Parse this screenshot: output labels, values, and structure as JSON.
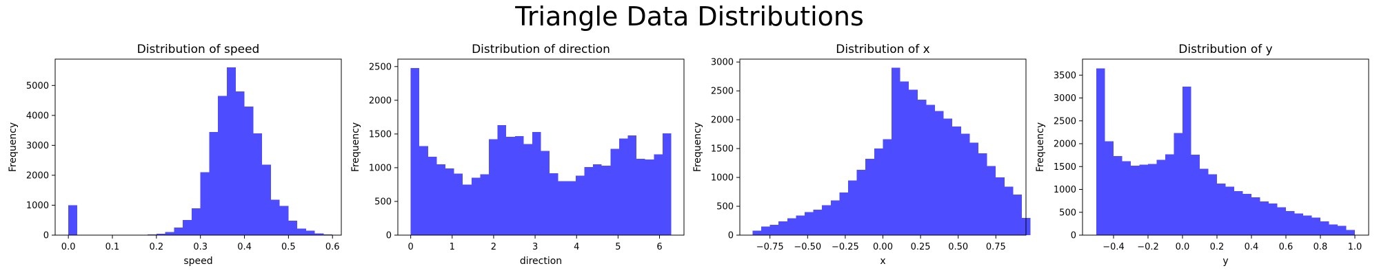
{
  "suptitle": "Triangle Data Distributions",
  "colors": {
    "bar": "#4d4dff",
    "axis": "#000000"
  },
  "chart_data": [
    {
      "type": "bar",
      "title": "Distribution of speed",
      "xlabel": "speed",
      "ylabel": "Frequency",
      "xlim": [
        -0.03,
        0.62
      ],
      "ylim": [
        0,
        5880
      ],
      "xticks": [
        0.0,
        0.1,
        0.2,
        0.3,
        0.4,
        0.5,
        0.6
      ],
      "xtick_labels": [
        "0.0",
        "0.1",
        "0.2",
        "0.3",
        "0.4",
        "0.5",
        "0.6"
      ],
      "yticks": [
        0,
        1000,
        2000,
        3000,
        4000,
        5000
      ],
      "ytick_labels": [
        "0",
        "1000",
        "2000",
        "3000",
        "4000",
        "5000"
      ],
      "bin_start": 0.0,
      "bin_width": 0.02,
      "values": [
        1000,
        0,
        0,
        0,
        0,
        0,
        0,
        0,
        10,
        20,
        50,
        100,
        250,
        500,
        900,
        2100,
        3450,
        4650,
        5600,
        4800,
        4300,
        3400,
        2350,
        1180,
        980,
        480,
        220,
        150,
        60,
        20
      ]
    },
    {
      "type": "bar",
      "title": "Distribution of direction",
      "xlabel": "direction",
      "ylabel": "Frequency",
      "xlim": [
        -0.31,
        6.59
      ],
      "ylim": [
        0,
        2610
      ],
      "xticks": [
        0,
        1,
        2,
        3,
        4,
        5,
        6
      ],
      "xtick_labels": [
        "0",
        "1",
        "2",
        "3",
        "4",
        "5",
        "6"
      ],
      "yticks": [
        0,
        500,
        1000,
        1500,
        2000,
        2500
      ],
      "ytick_labels": [
        "0",
        "500",
        "1000",
        "1500",
        "2000",
        "2500"
      ],
      "bin_start": 0.0,
      "bin_width": 0.2094,
      "values": [
        2480,
        1320,
        1160,
        1050,
        990,
        910,
        750,
        850,
        900,
        1420,
        1630,
        1460,
        1470,
        1350,
        1530,
        1250,
        920,
        800,
        800,
        880,
        1010,
        1050,
        1030,
        1280,
        1430,
        1480,
        1130,
        1120,
        1200,
        1510
      ]
    },
    {
      "type": "bar",
      "title": "Distribution of x",
      "xlabel": "x",
      "ylabel": "Frequency",
      "xlim": [
        -0.95,
        0.95
      ],
      "ylim": [
        0,
        3050
      ],
      "xticks": [
        -0.75,
        -0.5,
        -0.25,
        0.0,
        0.25,
        0.5,
        0.75
      ],
      "xtick_labels": [
        "−0.75",
        "−0.50",
        "−0.25",
        "0.00",
        "0.25",
        "0.50",
        "0.75"
      ],
      "yticks": [
        0,
        500,
        1000,
        1500,
        2000,
        2500,
        3000
      ],
      "ytick_labels": [
        "0",
        "500",
        "1000",
        "1500",
        "2000",
        "2500",
        "3000"
      ],
      "bin_start": -0.866,
      "bin_width": 0.0577,
      "values": [
        75,
        150,
        180,
        240,
        290,
        340,
        400,
        440,
        520,
        600,
        740,
        950,
        1130,
        1320,
        1500,
        1660,
        2900,
        2660,
        2520,
        2350,
        2260,
        2150,
        2020,
        1880,
        1760,
        1600,
        1420,
        1200,
        1000,
        840,
        700,
        300
      ]
    },
    {
      "type": "bar",
      "title": "Distribution of y",
      "xlabel": "y",
      "ylabel": "Frequency",
      "xlim": [
        -0.58,
        1.08
      ],
      "ylim": [
        0,
        3850
      ],
      "xticks": [
        -0.4,
        -0.2,
        0.0,
        0.2,
        0.4,
        0.6,
        0.8,
        1.0
      ],
      "xtick_labels": [
        "−0.4",
        "−0.2",
        "0.0",
        "0.2",
        "0.4",
        "0.6",
        "0.8",
        "1.0"
      ],
      "yticks": [
        0,
        500,
        1000,
        1500,
        2000,
        2500,
        3000,
        3500
      ],
      "ytick_labels": [
        "0",
        "500",
        "1000",
        "1500",
        "2000",
        "2500",
        "3000",
        "3500"
      ],
      "bin_start": -0.5,
      "bin_width": 0.05,
      "values": [
        3650,
        2050,
        1730,
        1620,
        1520,
        1540,
        1560,
        1650,
        1770,
        2230,
        3250,
        1760,
        1450,
        1330,
        1130,
        1060,
        960,
        900,
        830,
        740,
        690,
        610,
        530,
        470,
        430,
        380,
        300,
        230,
        200,
        110
      ]
    }
  ]
}
